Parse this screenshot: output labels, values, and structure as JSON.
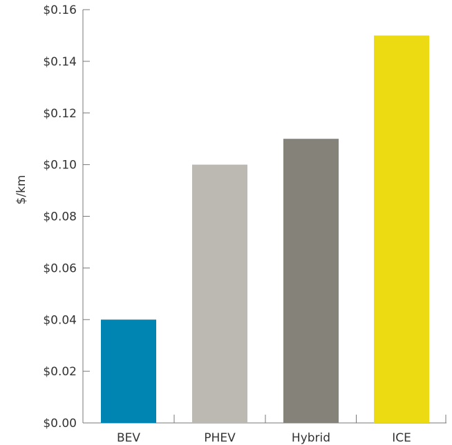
{
  "chart_data": {
    "type": "bar",
    "categories": [
      "BEV",
      "PHEV",
      "Hybrid",
      "ICE"
    ],
    "values": [
      0.04,
      0.1,
      0.11,
      0.15
    ],
    "colors": [
      "#0085B3",
      "#BCB8B2",
      "#858279",
      "#ECDB12"
    ],
    "ylabel": "$/km",
    "ylim": [
      0,
      0.16
    ],
    "yticks": [
      0,
      0.02,
      0.04,
      0.06,
      0.08,
      0.1,
      0.12,
      0.14,
      0.16
    ],
    "ytick_labels": [
      "$0.00",
      "$0.02",
      "$0.04",
      "$0.06",
      "$0.08",
      "$0.10",
      "$0.12",
      "$0.14",
      "$0.16"
    ],
    "grid": false,
    "legend": "none"
  }
}
